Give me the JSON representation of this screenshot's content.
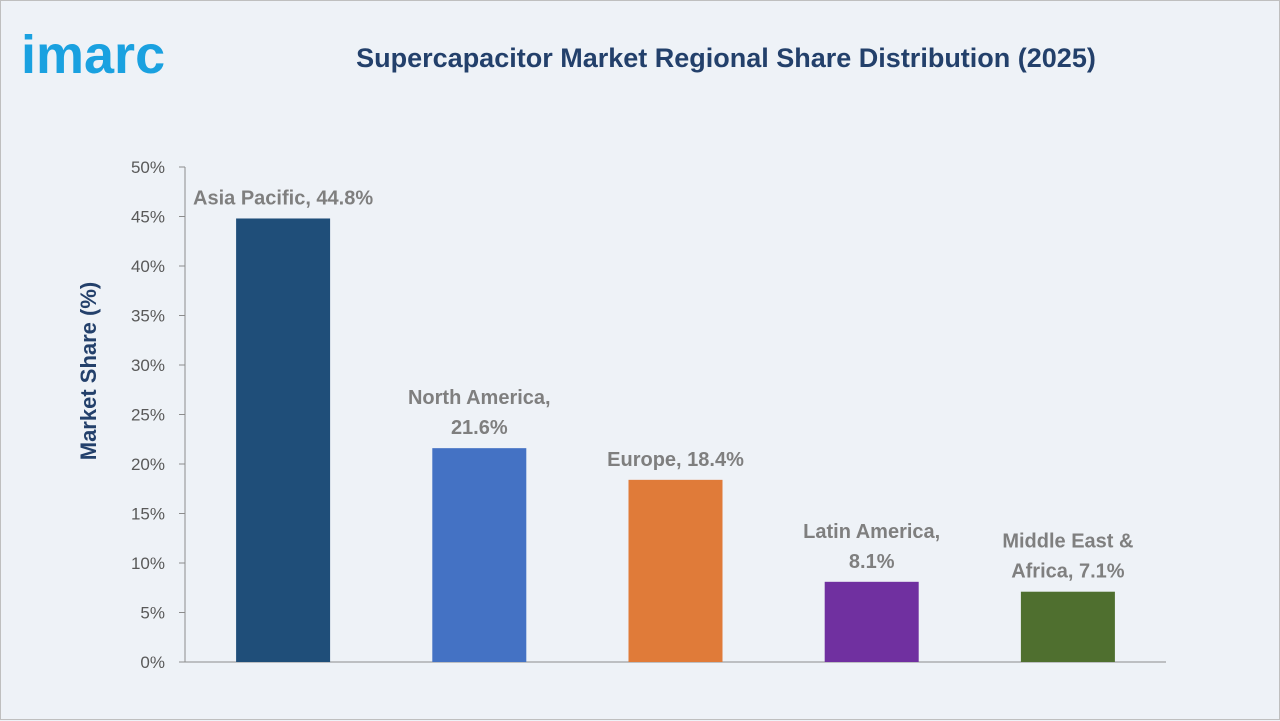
{
  "brand": {
    "logo_text": "imarc",
    "logo_color": "#1aa1e0"
  },
  "chart_data": {
    "type": "bar",
    "title": "Supercapacitor Market Regional Share Distribution (2025)",
    "ylabel": "Market Share (%)",
    "xlabel": "",
    "ylim": [
      0,
      50
    ],
    "yticks": [
      "0%",
      "5%",
      "10%",
      "15%",
      "20%",
      "25%",
      "30%",
      "35%",
      "40%",
      "45%",
      "50%"
    ],
    "categories": [
      "Asia Pacific",
      "North America",
      "Europe",
      "Latin America",
      "Middle East & Africa"
    ],
    "values": [
      44.8,
      21.6,
      18.4,
      8.1,
      7.1
    ],
    "data_labels": [
      [
        "Asia Pacific, 44.8%"
      ],
      [
        "North America,",
        "21.6%"
      ],
      [
        "Europe, 18.4%"
      ],
      [
        "Latin America,",
        "8.1%"
      ],
      [
        "Middle East &",
        "Africa, 7.1%"
      ]
    ],
    "colors": [
      "#1f4e79",
      "#4472c4",
      "#e07b39",
      "#7030a0",
      "#4f6f2f"
    ],
    "grid": false,
    "legend": "none"
  }
}
